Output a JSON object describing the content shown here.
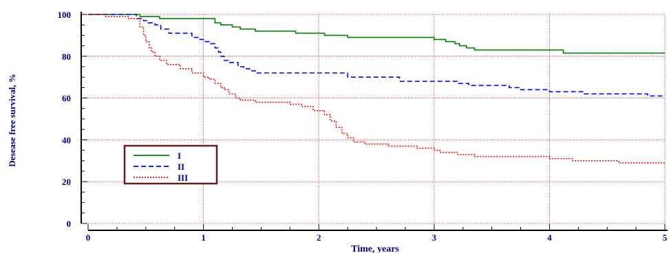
{
  "chart_data": {
    "type": "line",
    "title": "",
    "xlabel": "Time, years",
    "ylabel": "Desease free survival, %",
    "xlim": [
      0,
      5
    ],
    "ylim": [
      0,
      100
    ],
    "x_ticks": [
      0,
      1,
      2,
      3,
      4,
      5
    ],
    "y_ticks": [
      0,
      20,
      40,
      60,
      80,
      100
    ],
    "grid": true,
    "legend_position": "lower-left",
    "series": [
      {
        "name": "I",
        "color": "#008000",
        "dash": "solid",
        "x": [
          0,
          0.38,
          0.45,
          0.55,
          0.62,
          1.0,
          1.1,
          1.15,
          1.25,
          1.32,
          1.45,
          1.6,
          1.8,
          2.05,
          2.25,
          2.4,
          3.0,
          3.1,
          3.18,
          3.22,
          3.28,
          3.35,
          3.4,
          3.8,
          4.12,
          4.5,
          5.0
        ],
        "y": [
          100,
          100,
          99,
          99,
          98,
          98,
          96,
          95,
          94,
          93,
          92,
          92,
          91,
          90,
          89,
          89,
          88,
          87,
          86,
          85,
          84,
          83,
          83,
          83,
          81.5,
          81.5,
          81.5
        ]
      },
      {
        "name": "II",
        "color": "#0000ff",
        "dash": "dashed",
        "x": [
          0,
          0.38,
          0.42,
          0.48,
          0.52,
          0.58,
          0.63,
          0.7,
          0.9,
          0.97,
          1.0,
          1.05,
          1.1,
          1.13,
          1.15,
          1.18,
          1.22,
          1.3,
          1.35,
          1.4,
          1.45,
          1.8,
          2.1,
          2.25,
          2.6,
          2.7,
          3.0,
          3.2,
          3.3,
          3.5,
          3.65,
          3.75,
          4.0,
          4.3,
          4.85,
          5.0
        ],
        "y": [
          100,
          100,
          98,
          97,
          96,
          95,
          93,
          91,
          89,
          88,
          87,
          86,
          84,
          82,
          80,
          78,
          77,
          75,
          74,
          73,
          72,
          72,
          72,
          70,
          70,
          68,
          68,
          67,
          66,
          66,
          65,
          64,
          63,
          62,
          61,
          61
        ]
      },
      {
        "name": "III",
        "color": "#ff0000",
        "dash": "dotted",
        "x": [
          0,
          0.15,
          0.35,
          0.45,
          0.48,
          0.5,
          0.53,
          0.55,
          0.58,
          0.62,
          0.68,
          0.8,
          0.9,
          1.0,
          1.05,
          1.1,
          1.15,
          1.18,
          1.22,
          1.28,
          1.32,
          1.45,
          1.75,
          1.85,
          1.95,
          2.05,
          2.1,
          2.15,
          2.2,
          2.25,
          2.3,
          2.4,
          2.6,
          2.85,
          3.0,
          3.05,
          3.2,
          3.35,
          3.6,
          4.0,
          4.2,
          4.6,
          5.0
        ],
        "y": [
          100,
          99,
          98,
          94,
          90,
          87,
          84,
          82,
          80,
          78,
          76,
          74,
          72,
          70,
          69,
          67,
          65,
          64,
          62,
          60,
          59,
          58,
          57,
          56,
          54,
          52,
          49,
          46,
          43,
          41,
          39,
          38,
          37,
          36,
          35,
          34,
          33,
          32,
          32,
          31,
          30,
          29,
          29
        ]
      }
    ]
  }
}
